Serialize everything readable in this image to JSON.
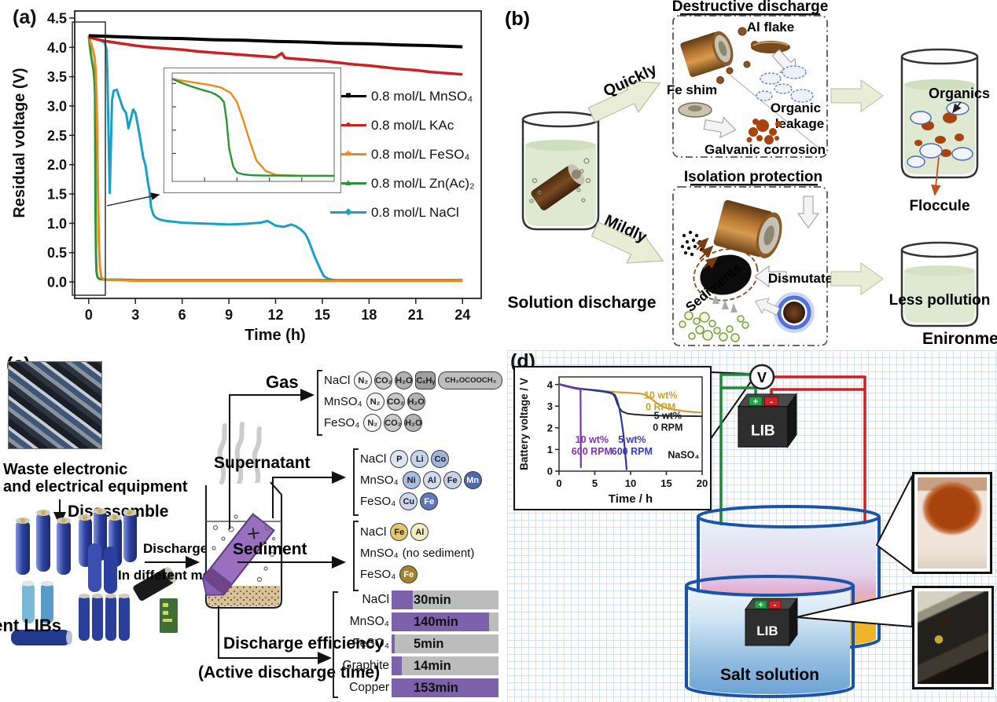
{
  "panels": {
    "a": "(a)",
    "b": "(b)",
    "c": "(c)",
    "d": "(d)"
  },
  "chart_data": [
    {
      "id": "residual_voltage_vs_time",
      "type": "line",
      "title": "",
      "xlabel": "Time (h)",
      "ylabel": "Residual voltage (V)",
      "xlim": [
        -0.9,
        25.2
      ],
      "ylim": [
        -0.28,
        4.62
      ],
      "xticks": [
        0,
        3,
        6,
        9,
        12,
        15,
        18,
        21,
        24
      ],
      "yticks": [
        0.0,
        0.5,
        1.0,
        1.5,
        2.0,
        2.5,
        3.0,
        3.5,
        4.0,
        4.5
      ],
      "grid": false,
      "legend_position": "right-middle",
      "inset": {
        "xlim": [
          0,
          1.25
        ],
        "ylim": [
          -0.2,
          4.45
        ],
        "series_shown": [
          "0.8 mol/L FeSO₄",
          "0.8 mol/L Zn(Ac)₂"
        ]
      },
      "series": [
        {
          "name": "0.8 mol/L MnSO₄",
          "color": "#000000",
          "marker": "■",
          "width": 4,
          "x": [
            0,
            2,
            4,
            6,
            8,
            10,
            12,
            14,
            16,
            18,
            20,
            22,
            24
          ],
          "y": [
            4.2,
            4.18,
            4.16,
            4.15,
            4.13,
            4.12,
            4.1,
            4.09,
            4.07,
            4.06,
            4.04,
            4.03,
            4.01
          ]
        },
        {
          "name": "0.8 mol/L KAc",
          "color": "#cb2122",
          "marker": "●",
          "width": 3.5,
          "x": [
            0,
            1,
            2,
            3,
            4,
            5,
            6,
            7,
            8,
            9,
            10,
            11,
            12,
            12.4,
            12.6,
            13,
            14,
            15,
            16,
            17,
            18,
            19,
            20,
            21,
            22,
            23,
            24
          ],
          "y": [
            4.17,
            4.11,
            4.07,
            4.03,
            4.0,
            3.98,
            3.96,
            3.93,
            3.91,
            3.89,
            3.87,
            3.85,
            3.83,
            3.9,
            3.82,
            3.81,
            3.79,
            3.77,
            3.74,
            3.71,
            3.69,
            3.66,
            3.63,
            3.61,
            3.58,
            3.56,
            3.54
          ]
        },
        {
          "name": "0.8 mol/L FeSO₄",
          "color": "#ee8a1c",
          "marker": "★",
          "width": 3,
          "x": [
            0,
            0.08,
            0.15,
            0.22,
            0.3,
            0.38,
            0.45,
            0.5,
            0.55,
            0.6,
            0.65,
            0.72,
            0.8,
            1,
            1.5,
            2,
            3,
            5,
            8,
            12,
            16,
            20,
            24
          ],
          "y": [
            4.2,
            4.12,
            4.06,
            4.0,
            3.93,
            3.82,
            3.6,
            3.2,
            2.4,
            1.5,
            0.7,
            0.25,
            0.08,
            0.04,
            0.03,
            0.03,
            0.02,
            0.02,
            0.02,
            0.02,
            0.02,
            0.02,
            0.02
          ]
        },
        {
          "name": "0.8 mol/L Zn(Ac)₂",
          "color": "#2b9438",
          "marker": "▲",
          "width": 3,
          "x": [
            0,
            0.05,
            0.1,
            0.15,
            0.2,
            0.25,
            0.3,
            0.34,
            0.37,
            0.4,
            0.42,
            0.44,
            0.47,
            0.5,
            0.55,
            0.6,
            0.7,
            0.8,
            1,
            1.5,
            2,
            3,
            5,
            8,
            12,
            16,
            20,
            24
          ],
          "y": [
            4.2,
            4.08,
            3.97,
            3.87,
            3.78,
            3.7,
            3.62,
            3.52,
            3.4,
            3.2,
            2.4,
            1.2,
            0.45,
            0.18,
            0.1,
            0.07,
            0.05,
            0.05,
            0.04,
            0.04,
            0.04,
            0.03,
            0.03,
            0.03,
            0.03,
            0.03,
            0.03,
            0.03
          ]
        },
        {
          "name": "0.8 mol/L NaCl",
          "color": "#19a0c6",
          "marker": "◆",
          "width": 3,
          "x": [
            0,
            0.3,
            0.6,
            0.9,
            1.05,
            1.15,
            1.2,
            1.25,
            1.3,
            1.35,
            1.42,
            1.5,
            1.6,
            1.8,
            2.0,
            2.2,
            2.4,
            2.55,
            2.7,
            2.85,
            3.0,
            3.15,
            3.3,
            3.5,
            3.65,
            3.8,
            3.9,
            4.0,
            4.15,
            4.3,
            4.6,
            5,
            6,
            7,
            8,
            9,
            10,
            11,
            11.5,
            12,
            12.5,
            13,
            13.3,
            13.6,
            13.9,
            14.1,
            14.3,
            14.5,
            14.7,
            14.9,
            15.1,
            15.4,
            15.8,
            16.3,
            17,
            18,
            20,
            22,
            24
          ],
          "y": [
            4.2,
            4.16,
            4.13,
            4.1,
            4.07,
            3.95,
            3.55,
            2.8,
            2.1,
            1.52,
            2.3,
            3.1,
            3.26,
            3.28,
            3.12,
            2.96,
            2.88,
            2.62,
            2.78,
            2.94,
            2.88,
            2.68,
            2.45,
            2.12,
            1.98,
            1.7,
            1.55,
            1.28,
            1.15,
            1.1,
            1.06,
            1.04,
            1.01,
            1.0,
            0.99,
            0.98,
            0.99,
            1.01,
            1.04,
            0.96,
            0.94,
            0.98,
            0.95,
            0.9,
            0.82,
            0.72,
            0.58,
            0.44,
            0.32,
            0.2,
            0.1,
            0.05,
            0.03,
            0.02,
            0.02,
            0.02,
            0.02,
            0.02,
            0.02
          ]
        }
      ]
    },
    {
      "id": "battery_voltage_vs_time",
      "type": "line",
      "title": "",
      "xlabel": "Time / h",
      "ylabel": "Battery voltage / V",
      "xlim": [
        0,
        20
      ],
      "ylim": [
        0,
        4.35
      ],
      "xticks": [
        0,
        5,
        10,
        15,
        20
      ],
      "yticks": [
        0,
        1,
        2,
        3,
        4
      ],
      "grid": false,
      "electrolyte_label": "NaSO₄",
      "series": [
        {
          "name": "10 wt% 0 RPM",
          "color": "#d49c3f",
          "width": 2.2,
          "x": [
            0,
            1,
            2,
            3,
            4,
            5,
            6,
            7,
            8,
            9,
            10,
            11,
            11.8,
            12.4,
            13,
            13.6,
            14.2,
            15,
            16,
            17,
            18,
            19,
            20
          ],
          "y": [
            4.0,
            3.93,
            3.86,
            3.81,
            3.77,
            3.74,
            3.71,
            3.68,
            3.65,
            3.63,
            3.61,
            3.59,
            3.56,
            3.46,
            3.31,
            3.16,
            3.03,
            2.91,
            2.84,
            2.79,
            2.75,
            2.72,
            2.7
          ]
        },
        {
          "name": "5 wt% 0 RPM",
          "color": "#2a2a2a",
          "width": 2,
          "x": [
            0,
            1,
            2,
            3,
            4,
            5,
            6,
            7,
            7.5,
            7.8,
            8.1,
            8.4,
            8.8,
            9.5,
            10.5,
            12,
            14,
            16,
            18,
            20
          ],
          "y": [
            4.02,
            3.94,
            3.86,
            3.8,
            3.76,
            3.72,
            3.68,
            3.62,
            3.56,
            3.44,
            3.15,
            2.92,
            2.76,
            2.66,
            2.62,
            2.58,
            2.56,
            2.55,
            2.54,
            2.53
          ]
        },
        {
          "name": "5 wt% 600 RPM",
          "color": "#2f3699",
          "width": 2.2,
          "x": [
            0,
            1,
            2,
            3,
            4,
            5,
            6,
            7,
            7.4,
            7.8,
            8.1,
            8.4,
            8.7,
            9.0,
            9.2,
            9.35,
            9.45
          ],
          "y": [
            4.02,
            3.93,
            3.85,
            3.8,
            3.77,
            3.74,
            3.7,
            3.64,
            3.6,
            3.52,
            3.3,
            2.95,
            2.4,
            1.7,
            1.0,
            0.45,
            0.05
          ]
        },
        {
          "name": "10 wt% 600 RPM",
          "color": "#7733b8",
          "width": 2.2,
          "x": [
            0,
            0.5,
            1,
            1.5,
            2,
            2.5,
            2.9,
            3.0,
            3.05
          ],
          "y": [
            4.02,
            3.96,
            3.91,
            3.87,
            3.83,
            3.8,
            3.78,
            3.72,
            0.15
          ]
        }
      ],
      "annotations": [
        {
          "lines": [
            "10 wt%",
            "0 RPM"
          ],
          "color": "#c9a227",
          "at": [
            14.2,
            3.1
          ],
          "anchor": "middle"
        },
        {
          "lines": [
            "5 wt%",
            "0 RPM"
          ],
          "color": "#1a1a1a",
          "at": [
            15.2,
            2.15
          ],
          "anchor": "middle"
        },
        {
          "lines": [
            "10 wt%",
            "600 RPM"
          ],
          "color": "#8033c0",
          "at": [
            4.6,
            1.05
          ],
          "anchor": "middle"
        },
        {
          "lines": [
            "5 wt%",
            "600 RPM"
          ],
          "color": "#3a3ab8",
          "at": [
            10.2,
            1.05
          ],
          "anchor": "middle"
        },
        {
          "lines": [
            "NaSO₄"
          ],
          "color": "#111111",
          "at": [
            19.6,
            0.35
          ],
          "anchor": "end"
        }
      ]
    },
    {
      "id": "discharge_efficiency",
      "type": "bar",
      "orientation": "horizontal",
      "title": "Discharge efficiency (Active discharge time)",
      "categories": [
        "NaCl",
        "MnSO₄",
        "FeSO₄",
        "Graphite",
        "Copper"
      ],
      "values": [
        30,
        140,
        5,
        14,
        153
      ],
      "value_labels": [
        "30min",
        "140min",
        "5min",
        "14min",
        "153min"
      ],
      "unit": "min",
      "xmax": 153,
      "bar_color": "#7d62ab",
      "track_color": "#bcbcbc"
    }
  ],
  "panel_b": {
    "solution_discharge": "Solution discharge",
    "quickly": "Quickly",
    "mildly": "Mildly",
    "destructive_title": "Destructive discharge",
    "al_flake": "Al flake",
    "fe_shim": "Fe shim",
    "organic_line1": "Organic",
    "organic_line2": "leakage",
    "galvanic": "Galvanic corrosion",
    "isolation_title": "Isolation protection",
    "sediments": "Sediments",
    "dismutate": "Dismutate",
    "organics": "Organics",
    "floccule": "Floccule",
    "less_pollution": "Less pollution",
    "environmental": "Enironmental impacts"
  },
  "panel_c": {
    "waste_line1": "Waste electronic",
    "waste_line2": "and electrical equipment",
    "disassemble": "Disassemble",
    "spent_libs": "Spent LIBs",
    "discharge": "Discharge",
    "in_different_media": "In different media",
    "gas_label": "Gas",
    "supernatant_label": "Supernatant",
    "sediment_label": "Sediment",
    "efficiency_label": "Discharge efficiency",
    "efficiency_sub": "(Active discharge time)",
    "gas_rows": [
      {
        "salt": "NaCl",
        "chips": [
          {
            "t": "N₂",
            "bg": "#f4f4f4",
            "shape": "circle"
          },
          {
            "t": "CO₂",
            "bg": "#c9c9c9",
            "shape": "circle"
          },
          {
            "t": "H₂O",
            "bg": "#b3b3b3",
            "shape": "circle"
          },
          {
            "t": "CₓHᵧ",
            "bg": "#9e9e9e",
            "shape": "square"
          },
          {
            "t": "CH₃OCOOCH₃",
            "bg": "#bdbdbd",
            "shape": "pill"
          }
        ]
      },
      {
        "salt": "MnSO₄",
        "chips": [
          {
            "t": "N₂",
            "bg": "#f4f4f4",
            "shape": "circle"
          },
          {
            "t": "CO₂",
            "bg": "#c9c9c9",
            "shape": "circle"
          },
          {
            "t": "H₂O",
            "bg": "#b3b3b3",
            "shape": "circle"
          }
        ]
      },
      {
        "salt": "FeSO₄",
        "chips": [
          {
            "t": "N₂",
            "bg": "#f4f4f4",
            "shape": "circle"
          },
          {
            "t": "CO₂",
            "bg": "#c9c9c9",
            "shape": "circle"
          },
          {
            "t": "H₂O",
            "bg": "#b3b3b3",
            "shape": "circle"
          }
        ]
      }
    ],
    "supernatant_rows": [
      {
        "salt": "NaCl",
        "chips": [
          {
            "t": "P",
            "bg": "#dce5f3"
          },
          {
            "t": "Li",
            "bg": "#c6d4ec"
          },
          {
            "t": "Co",
            "bg": "#9fb6dd"
          }
        ]
      },
      {
        "salt": "MnSO₄",
        "chips": [
          {
            "t": "Ni",
            "bg": "#a9bfe3"
          },
          {
            "t": "Al",
            "bg": "#d3ddf1"
          },
          {
            "t": "Fe",
            "bg": "#c6d4ec"
          },
          {
            "t": "Mn",
            "bg": "#4d68b0",
            "fg": "#ffffff"
          }
        ]
      },
      {
        "salt": "FeSO₄",
        "chips": [
          {
            "t": "Cu",
            "bg": "#cdd9ef"
          },
          {
            "t": "Fe",
            "bg": "#5b76ba",
            "fg": "#ffffff"
          }
        ]
      }
    ],
    "sediment_rows": [
      {
        "salt": "NaCl",
        "chips": [
          {
            "t": "Fe",
            "bg": "#e6c76d"
          },
          {
            "t": "Al",
            "bg": "#f5ecc3"
          }
        ]
      },
      {
        "salt": "MnSO₄",
        "note": "(no sediment)",
        "chips": []
      },
      {
        "salt": "FeSO₄",
        "chips": [
          {
            "t": "Fe",
            "bg": "#a3832c",
            "fg": "#ffffff"
          }
        ]
      }
    ]
  },
  "panel_d": {
    "voltmeter": "V",
    "lib_1": "LIB",
    "lib_2": "LIB",
    "salt_solution_1": "Salt solution",
    "salt_solution_2": "Salt solution"
  }
}
